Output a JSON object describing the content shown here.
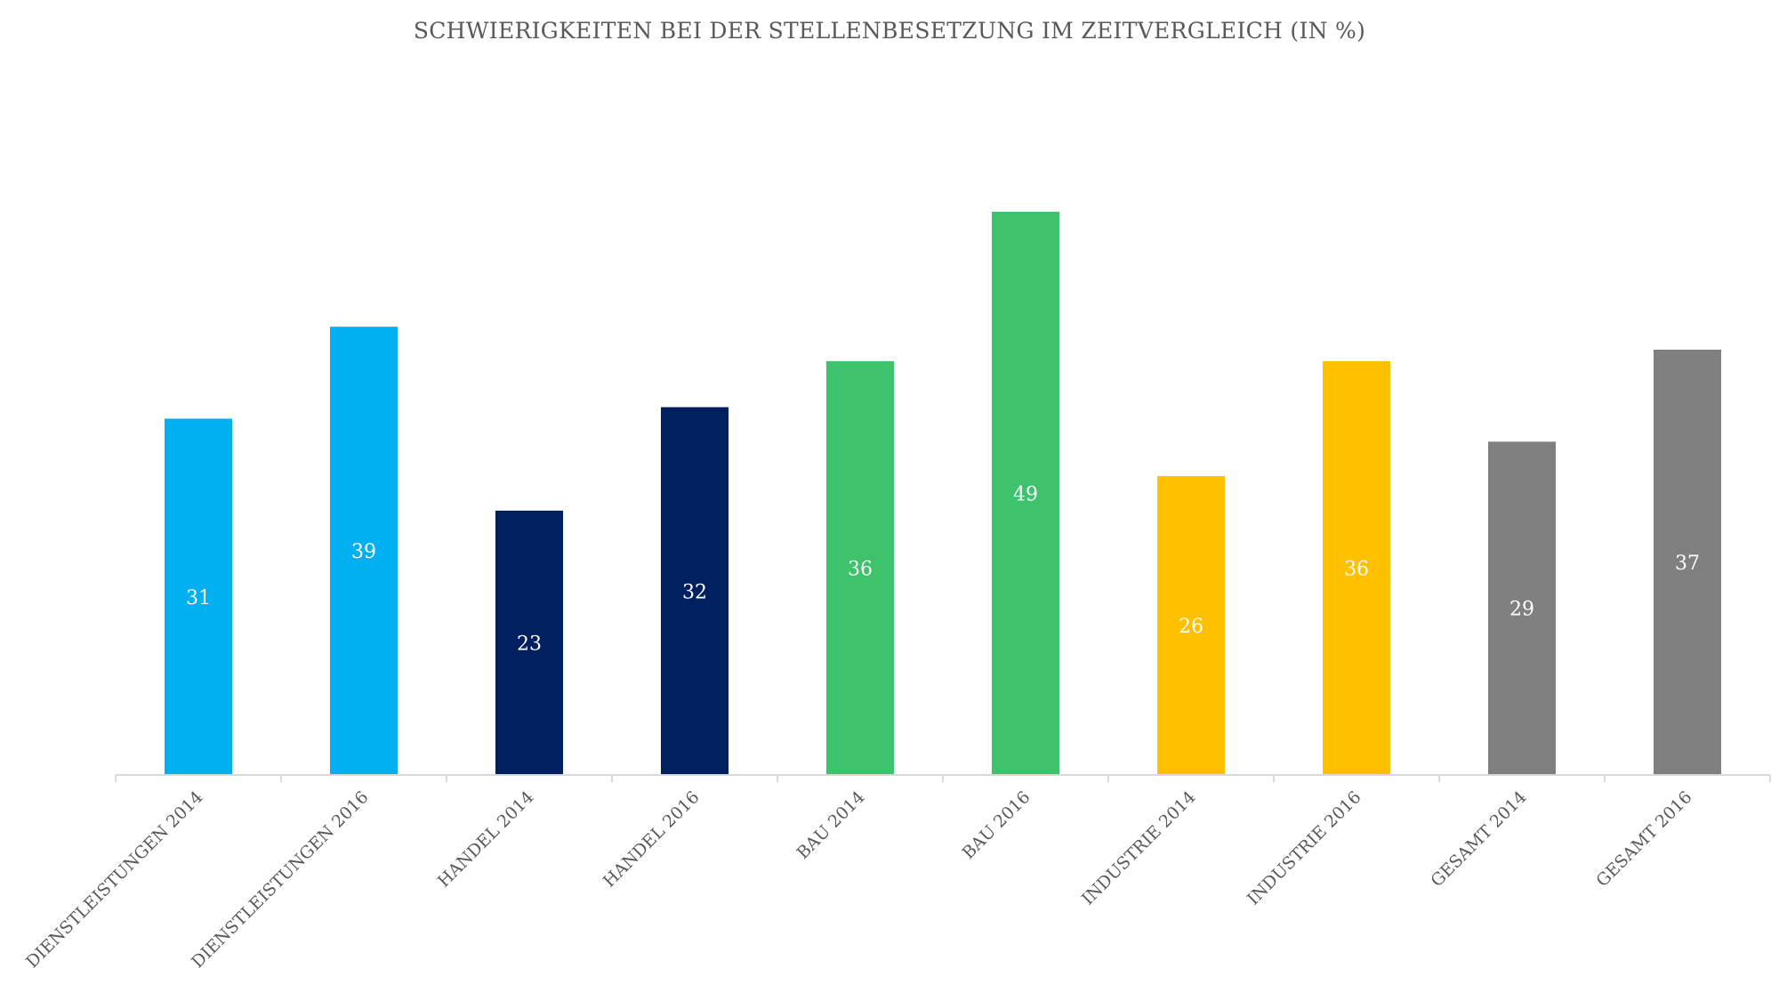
{
  "chart_data": {
    "type": "bar",
    "title": "SCHWIERIGKEITEN BEI DER STELLENBESETZUNG IM ZEITVERGLEICH (IN %)",
    "xlabel": "",
    "ylabel": "",
    "categories": [
      "DIENSTLEISTUNGEN 2014",
      "DIENSTLEISTUNGEN 2016",
      "HANDEL 2014",
      "HANDEL 2016",
      "BAU 2014",
      "BAU 2016",
      "INDUSTRIE 2014",
      "INDUSTRIE 2016",
      "GESAMT 2014",
      "GESAMT 2016"
    ],
    "values": [
      31,
      39,
      23,
      32,
      36,
      49,
      26,
      36,
      29,
      37
    ],
    "bar_colors": [
      "#00B0F0",
      "#00B0F0",
      "#002060",
      "#002060",
      "#3EC26B",
      "#3EC26B",
      "#FFC000",
      "#FFC000",
      "#808080",
      "#808080"
    ],
    "ylim": [
      0,
      55
    ],
    "grid": false,
    "data_labels": true
  },
  "colors": {
    "title": "#595959",
    "axis": "#D9D9D9",
    "tick_label": "#595959",
    "value_label": "#FFFFFF"
  }
}
